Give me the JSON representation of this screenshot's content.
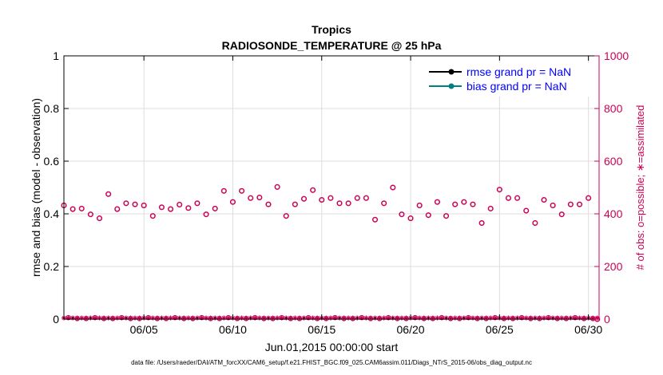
{
  "chart_data": {
    "type": "scatter",
    "title": "Tropics",
    "subtitle": "RADIOSONDE_TEMPERATURE @ 25 hPa",
    "xlabel": "Jun.01,2015 00:00:00 start",
    "ylabel_left": "rmse and bias (model - observation)",
    "ylabel_right": "# of obs: o=possible; ∗=assimilated",
    "x_range_days": [
      0.5,
      30.6
    ],
    "ylim_left": [
      0,
      1
    ],
    "ylim_right": [
      0,
      1000
    ],
    "x_ticks": [
      {
        "day": 5,
        "label": "06/05"
      },
      {
        "day": 10,
        "label": "06/10"
      },
      {
        "day": 15,
        "label": "06/15"
      },
      {
        "day": 20,
        "label": "06/20"
      },
      {
        "day": 25,
        "label": "06/25"
      },
      {
        "day": 30,
        "label": "06/30"
      }
    ],
    "y_ticks_left": [
      "0",
      "0.2",
      "0.4",
      "0.6",
      "0.8",
      "1"
    ],
    "y_ticks_right": [
      "0",
      "200",
      "400",
      "600",
      "800",
      "1000"
    ],
    "grid": true,
    "legend": {
      "placement": "top-right",
      "entries": [
        {
          "label": "rmse grand pr = NaN",
          "color": "#000000"
        },
        {
          "label": "bias grand pr = NaN",
          "color": "#008080"
        }
      ]
    },
    "colors": {
      "left_axis": "#000000",
      "right_axis": "#cc0055",
      "text_blue": "#0000ff"
    },
    "obs_possible_days": [
      0.5,
      1.0,
      1.5,
      2.0,
      2.5,
      3.0,
      3.5,
      4.0,
      4.5,
      5.0,
      5.5,
      6.0,
      6.5,
      7.0,
      7.5,
      8.0,
      8.5,
      9.0,
      9.5,
      10.0,
      10.5,
      11.0,
      11.5,
      12.0,
      12.5,
      13.0,
      13.5,
      14.0,
      14.5,
      15.0,
      15.5,
      16.0,
      16.5,
      17.0,
      17.5,
      18.0,
      18.5,
      19.0,
      19.5,
      20.0,
      20.5,
      21.0,
      21.5,
      22.0,
      22.5,
      23.0,
      23.5,
      24.0,
      24.5,
      25.0,
      25.5,
      26.0,
      26.5,
      27.0,
      27.5,
      28.0,
      28.5,
      29.0,
      29.5,
      30.0,
      30.5
    ],
    "obs_possible_values": [
      432,
      418,
      420,
      398,
      383,
      475,
      418,
      440,
      436,
      432,
      392,
      425,
      418,
      435,
      422,
      440,
      398,
      420,
      487,
      445,
      487,
      460,
      462,
      436,
      502,
      392,
      436,
      457,
      490,
      453,
      460,
      440,
      440,
      460,
      460,
      378,
      440,
      500,
      398,
      383,
      432,
      395,
      445,
      392,
      436,
      445,
      436,
      365,
      420,
      492,
      460,
      460,
      412,
      365,
      453,
      432,
      398,
      436,
      436,
      460,
      0
    ]
  },
  "footer": "data file: /Users/raeder/DAI/ATM_forcXX/CAM6_setup/f.e21.FHIST_BGC.f09_025.CAM6assim.011/Diags_NTrS_2015-06/obs_diag_output.nc"
}
